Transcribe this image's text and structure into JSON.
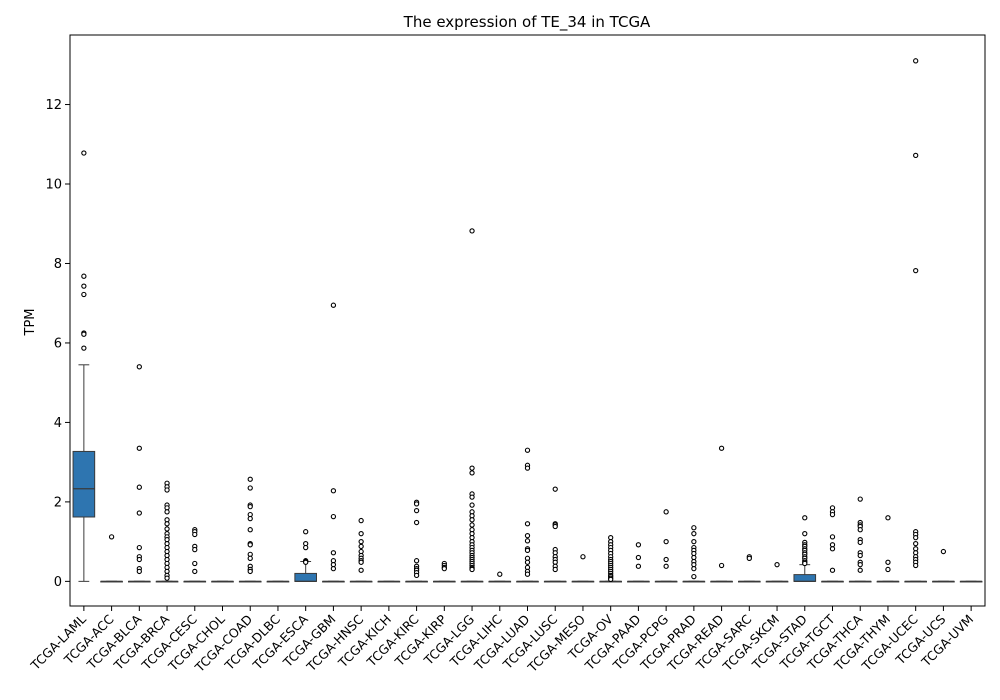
{
  "chart_data": {
    "type": "box",
    "title": "The expression of TE_34 in TCGA",
    "xlabel": "",
    "ylabel": "TPM",
    "ylim": [
      -0.62,
      13.75
    ],
    "yticks": [
      0,
      2,
      4,
      6,
      8,
      10,
      12
    ],
    "grid": false,
    "legend": "none",
    "box_color": "#2e75b0",
    "categories": [
      "TCGA-LAML",
      "TCGA-ACC",
      "TCGA-BLCA",
      "TCGA-BRCA",
      "TCGA-CESC",
      "TCGA-CHOL",
      "TCGA-COAD",
      "TCGA-DLBC",
      "TCGA-ESCA",
      "TCGA-GBM",
      "TCGA-HNSC",
      "TCGA-KICH",
      "TCGA-KIRC",
      "TCGA-KIRP",
      "TCGA-LGG",
      "TCGA-LIHC",
      "TCGA-LUAD",
      "TCGA-LUSC",
      "TCGA-MESO",
      "TCGA-OV",
      "TCGA-PAAD",
      "TCGA-PCPG",
      "TCGA-PRAD",
      "TCGA-READ",
      "TCGA-SARC",
      "TCGA-SKCM",
      "TCGA-STAD",
      "TCGA-TGCT",
      "TCGA-THCA",
      "TCGA-THYM",
      "TCGA-UCEC",
      "TCGA-UCS",
      "TCGA-UVM"
    ],
    "boxes": [
      {
        "q1": 1.62,
        "median": 2.33,
        "q3": 3.27,
        "whislo": 0.0,
        "whishi": 5.45,
        "fliers": [
          10.78,
          7.68,
          7.43,
          7.22,
          6.25,
          6.22,
          5.87
        ]
      },
      {
        "q1": 0,
        "median": 0,
        "q3": 0,
        "whislo": 0,
        "whishi": 0,
        "fliers": [
          1.12
        ]
      },
      {
        "q1": 0,
        "median": 0,
        "q3": 0,
        "whislo": 0,
        "whishi": 0,
        "fliers": [
          5.4,
          3.35,
          2.37,
          1.72,
          0.85,
          0.62,
          0.55,
          0.32,
          0.25
        ]
      },
      {
        "q1": 0,
        "median": 0,
        "q3": 0,
        "whislo": 0,
        "whishi": 0,
        "fliers": [
          2.47,
          2.38,
          2.3,
          1.92,
          1.85,
          1.75,
          1.55,
          1.45,
          1.32,
          1.2,
          1.12,
          1.05,
          0.95,
          0.85,
          0.75,
          0.65,
          0.55,
          0.45,
          0.35,
          0.25,
          0.15,
          0.08
        ]
      },
      {
        "q1": 0,
        "median": 0,
        "q3": 0,
        "whislo": 0,
        "whishi": 0,
        "fliers": [
          1.3,
          1.25,
          1.18,
          0.88,
          0.8,
          0.45,
          0.25
        ]
      },
      {
        "q1": 0,
        "median": 0,
        "q3": 0,
        "whislo": 0,
        "whishi": 0,
        "fliers": []
      },
      {
        "q1": 0,
        "median": 0,
        "q3": 0,
        "whislo": 0,
        "whishi": 0,
        "fliers": [
          2.57,
          2.35,
          1.92,
          1.88,
          1.68,
          1.58,
          1.3,
          0.95,
          0.92,
          0.68,
          0.58,
          0.38,
          0.3,
          0.25
        ]
      },
      {
        "q1": 0,
        "median": 0,
        "q3": 0,
        "whislo": 0,
        "whishi": 0,
        "fliers": []
      },
      {
        "q1": 0.0,
        "median": 0.0,
        "q3": 0.2,
        "whislo": 0.0,
        "whishi": 0.5,
        "fliers": [
          1.25,
          0.95,
          0.85,
          0.52,
          0.5,
          0.48
        ]
      },
      {
        "q1": 0,
        "median": 0,
        "q3": 0,
        "whislo": 0,
        "whishi": 0,
        "fliers": [
          6.95,
          2.28,
          1.63,
          0.72,
          0.52,
          0.42,
          0.32
        ]
      },
      {
        "q1": 0,
        "median": 0,
        "q3": 0,
        "whislo": 0,
        "whishi": 0,
        "fliers": [
          1.53,
          1.2,
          1.0,
          0.88,
          0.75,
          0.65,
          0.58,
          0.52,
          0.48,
          0.28
        ]
      },
      {
        "q1": 0,
        "median": 0,
        "q3": 0,
        "whislo": 0,
        "whishi": 0,
        "fliers": []
      },
      {
        "q1": 0,
        "median": 0,
        "q3": 0,
        "whislo": 0,
        "whishi": 0,
        "fliers": [
          1.99,
          1.95,
          1.78,
          1.48,
          0.52,
          0.38,
          0.32,
          0.28,
          0.22,
          0.15
        ]
      },
      {
        "q1": 0,
        "median": 0,
        "q3": 0,
        "whislo": 0,
        "whishi": 0,
        "fliers": [
          0.45,
          0.4,
          0.35,
          0.32
        ]
      },
      {
        "q1": 0,
        "median": 0,
        "q3": 0,
        "whislo": 0,
        "whishi": 0,
        "fliers": [
          8.82,
          2.85,
          2.73,
          2.2,
          2.12,
          1.92,
          1.75,
          1.65,
          1.55,
          1.42,
          1.3,
          1.2,
          1.1,
          1.0,
          0.92,
          0.85,
          0.78,
          0.72,
          0.65,
          0.6,
          0.55,
          0.5,
          0.45,
          0.4,
          0.35,
          0.32,
          0.3
        ]
      },
      {
        "q1": 0,
        "median": 0,
        "q3": 0,
        "whislo": 0,
        "whishi": 0,
        "fliers": [
          0.18
        ]
      },
      {
        "q1": 0,
        "median": 0,
        "q3": 0,
        "whislo": 0,
        "whishi": 0,
        "fliers": [
          3.3,
          2.92,
          2.85,
          1.45,
          1.15,
          1.02,
          0.82,
          0.78,
          0.58,
          0.48,
          0.35,
          0.25,
          0.18
        ]
      },
      {
        "q1": 0,
        "median": 0,
        "q3": 0,
        "whislo": 0,
        "whishi": 0,
        "fliers": [
          2.32,
          1.45,
          1.42,
          1.38,
          0.8,
          0.72,
          0.62,
          0.55,
          0.48,
          0.38,
          0.3
        ]
      },
      {
        "q1": 0,
        "median": 0,
        "q3": 0,
        "whislo": 0,
        "whishi": 0,
        "fliers": [
          0.62
        ]
      },
      {
        "q1": 0,
        "median": 0,
        "q3": 0,
        "whislo": 0,
        "whishi": 0,
        "fliers": [
          1.1,
          1.0,
          0.92,
          0.85,
          0.78,
          0.7,
          0.62,
          0.55,
          0.5,
          0.45,
          0.4,
          0.35,
          0.3,
          0.25,
          0.2,
          0.15,
          0.12,
          0.08,
          0.05
        ]
      },
      {
        "q1": 0,
        "median": 0,
        "q3": 0,
        "whislo": 0,
        "whishi": 0,
        "fliers": [
          0.92,
          0.6,
          0.38
        ]
      },
      {
        "q1": 0,
        "median": 0,
        "q3": 0,
        "whislo": 0,
        "whishi": 0,
        "fliers": [
          1.75,
          1.0,
          0.55,
          0.38
        ]
      },
      {
        "q1": 0,
        "median": 0,
        "q3": 0,
        "whislo": 0,
        "whishi": 0,
        "fliers": [
          1.35,
          1.2,
          1.0,
          0.85,
          0.78,
          0.7,
          0.6,
          0.5,
          0.42,
          0.32,
          0.12
        ]
      },
      {
        "q1": 0,
        "median": 0,
        "q3": 0,
        "whislo": 0,
        "whishi": 0,
        "fliers": [
          3.35,
          0.4
        ]
      },
      {
        "q1": 0,
        "median": 0,
        "q3": 0,
        "whislo": 0,
        "whishi": 0,
        "fliers": [
          0.62,
          0.58
        ]
      },
      {
        "q1": 0,
        "median": 0,
        "q3": 0,
        "whislo": 0,
        "whishi": 0,
        "fliers": [
          0.42
        ]
      },
      {
        "q1": 0.0,
        "median": 0.0,
        "q3": 0.17,
        "whislo": 0.0,
        "whishi": 0.42,
        "fliers": [
          1.6,
          1.2,
          0.98,
          0.92,
          0.88,
          0.82,
          0.78,
          0.72,
          0.68,
          0.62,
          0.58,
          0.52,
          0.48,
          0.45
        ]
      },
      {
        "q1": 0,
        "median": 0,
        "q3": 0,
        "whislo": 0,
        "whishi": 0,
        "fliers": [
          1.85,
          1.75,
          1.68,
          1.12,
          0.92,
          0.82,
          0.28
        ]
      },
      {
        "q1": 0,
        "median": 0,
        "q3": 0,
        "whislo": 0,
        "whishi": 0,
        "fliers": [
          2.07,
          1.48,
          1.42,
          1.38,
          1.3,
          1.05,
          0.98,
          0.72,
          0.65,
          0.48,
          0.42,
          0.28
        ]
      },
      {
        "q1": 0,
        "median": 0,
        "q3": 0,
        "whislo": 0,
        "whishi": 0,
        "fliers": [
          1.6,
          0.48,
          0.3
        ]
      },
      {
        "q1": 0,
        "median": 0,
        "q3": 0,
        "whislo": 0,
        "whishi": 0,
        "fliers": [
          13.1,
          10.72,
          7.82,
          1.25,
          1.18,
          1.1,
          0.95,
          0.82,
          0.72,
          0.62,
          0.55,
          0.48,
          0.4
        ]
      },
      {
        "q1": 0,
        "median": 0,
        "q3": 0,
        "whislo": 0,
        "whishi": 0,
        "fliers": [
          0.75
        ]
      },
      {
        "q1": 0,
        "median": 0,
        "q3": 0,
        "whislo": 0,
        "whishi": 0,
        "fliers": []
      }
    ]
  }
}
